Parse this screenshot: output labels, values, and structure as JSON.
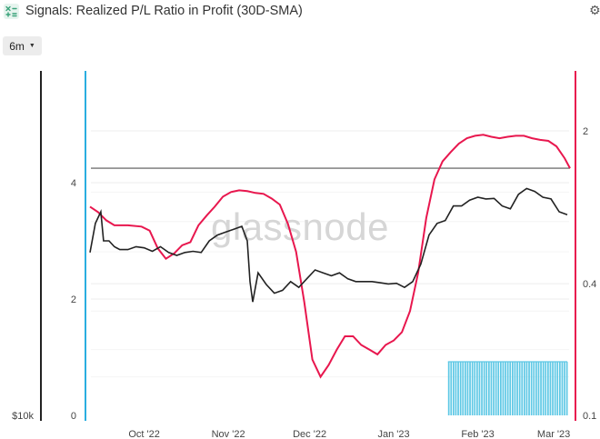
{
  "header": {
    "title": "Signals: Realized P/L Ratio in Profit (30D-SMA)"
  },
  "controls": {
    "resolution_label": "6m"
  },
  "watermark": "glassnode",
  "chart_data": {
    "type": "line",
    "x_ticks": [
      "Oct '22",
      "Nov '22",
      "Dec '22",
      "Jan '23",
      "Feb '23",
      "Mar '23"
    ],
    "left_axis": {
      "ticks": [
        "4",
        "2",
        "0"
      ],
      "bottom_label": "$10k"
    },
    "right_axis": {
      "scale": "log",
      "ticks": [
        "2",
        "0.4",
        "0.1"
      ]
    },
    "colors": {
      "price": "#222222",
      "ratio": "#e8174e",
      "signal": "#5ec8e5",
      "axis_left": "#222222",
      "axis_right": "#e8174e",
      "axis_signal": "#2aaee0"
    },
    "series": [
      {
        "key": "price",
        "values": [
          [
            "2022-09-11",
            2.8
          ],
          [
            "2022-09-13",
            3.3
          ],
          [
            "2022-09-15",
            3.5
          ],
          [
            "2022-09-16",
            3.0
          ],
          [
            "2022-09-18",
            3.0
          ],
          [
            "2022-09-20",
            2.9
          ],
          [
            "2022-09-22",
            2.85
          ],
          [
            "2022-09-25",
            2.85
          ],
          [
            "2022-09-28",
            2.9
          ],
          [
            "2022-10-01",
            2.88
          ],
          [
            "2022-10-04",
            2.82
          ],
          [
            "2022-10-07",
            2.9
          ],
          [
            "2022-10-10",
            2.8
          ],
          [
            "2022-10-13",
            2.75
          ],
          [
            "2022-10-16",
            2.8
          ],
          [
            "2022-10-19",
            2.82
          ],
          [
            "2022-10-22",
            2.8
          ],
          [
            "2022-10-25",
            3.0
          ],
          [
            "2022-10-28",
            3.1
          ],
          [
            "2022-10-31",
            3.15
          ],
          [
            "2022-11-03",
            3.2
          ],
          [
            "2022-11-06",
            3.25
          ],
          [
            "2022-11-08",
            3.0
          ],
          [
            "2022-11-09",
            2.3
          ],
          [
            "2022-11-10",
            1.95
          ],
          [
            "2022-11-12",
            2.45
          ],
          [
            "2022-11-15",
            2.25
          ],
          [
            "2022-11-18",
            2.1
          ],
          [
            "2022-11-21",
            2.15
          ],
          [
            "2022-11-24",
            2.3
          ],
          [
            "2022-11-27",
            2.2
          ],
          [
            "2022-11-30",
            2.35
          ],
          [
            "2022-12-03",
            2.5
          ],
          [
            "2022-12-06",
            2.45
          ],
          [
            "2022-12-09",
            2.4
          ],
          [
            "2022-12-12",
            2.45
          ],
          [
            "2022-12-15",
            2.35
          ],
          [
            "2022-12-18",
            2.3
          ],
          [
            "2022-12-21",
            2.3
          ],
          [
            "2022-12-24",
            2.3
          ],
          [
            "2022-12-27",
            2.28
          ],
          [
            "2022-12-30",
            2.26
          ],
          [
            "2023-01-02",
            2.27
          ],
          [
            "2023-01-05",
            2.2
          ],
          [
            "2023-01-08",
            2.3
          ],
          [
            "2023-01-11",
            2.6
          ],
          [
            "2023-01-14",
            3.1
          ],
          [
            "2023-01-17",
            3.3
          ],
          [
            "2023-01-20",
            3.35
          ],
          [
            "2023-01-23",
            3.6
          ],
          [
            "2023-01-26",
            3.6
          ],
          [
            "2023-01-29",
            3.7
          ],
          [
            "2023-02-01",
            3.75
          ],
          [
            "2023-02-04",
            3.72
          ],
          [
            "2023-02-07",
            3.73
          ],
          [
            "2023-02-10",
            3.6
          ],
          [
            "2023-02-13",
            3.55
          ],
          [
            "2023-02-16",
            3.8
          ],
          [
            "2023-02-19",
            3.9
          ],
          [
            "2023-02-22",
            3.85
          ],
          [
            "2023-02-25",
            3.75
          ],
          [
            "2023-02-28",
            3.72
          ],
          [
            "2023-03-03",
            3.5
          ],
          [
            "2023-03-06",
            3.45
          ]
        ]
      },
      {
        "key": "ratio",
        "values": [
          [
            "2022-09-11",
            0.9
          ],
          [
            "2022-09-14",
            0.85
          ],
          [
            "2022-09-17",
            0.78
          ],
          [
            "2022-09-20",
            0.74
          ],
          [
            "2022-09-25",
            0.74
          ],
          [
            "2022-09-30",
            0.73
          ],
          [
            "2022-10-03",
            0.7
          ],
          [
            "2022-10-06",
            0.58
          ],
          [
            "2022-10-09",
            0.52
          ],
          [
            "2022-10-12",
            0.55
          ],
          [
            "2022-10-15",
            0.6
          ],
          [
            "2022-10-18",
            0.62
          ],
          [
            "2022-10-21",
            0.74
          ],
          [
            "2022-10-24",
            0.82
          ],
          [
            "2022-10-27",
            0.9
          ],
          [
            "2022-10-30",
            1.0
          ],
          [
            "2022-11-02",
            1.05
          ],
          [
            "2022-11-05",
            1.07
          ],
          [
            "2022-11-08",
            1.06
          ],
          [
            "2022-11-11",
            1.04
          ],
          [
            "2022-11-14",
            1.03
          ],
          [
            "2022-11-17",
            0.98
          ],
          [
            "2022-11-20",
            0.92
          ],
          [
            "2022-11-23",
            0.75
          ],
          [
            "2022-11-26",
            0.56
          ],
          [
            "2022-11-29",
            0.33
          ],
          [
            "2022-12-02",
            0.18
          ],
          [
            "2022-12-05",
            0.15
          ],
          [
            "2022-12-08",
            0.17
          ],
          [
            "2022-12-11",
            0.2
          ],
          [
            "2022-12-14",
            0.23
          ],
          [
            "2022-12-17",
            0.23
          ],
          [
            "2022-12-20",
            0.21
          ],
          [
            "2022-12-23",
            0.2
          ],
          [
            "2022-12-26",
            0.19
          ],
          [
            "2022-12-29",
            0.21
          ],
          [
            "2023-01-01",
            0.22
          ],
          [
            "2023-01-04",
            0.24
          ],
          [
            "2023-01-07",
            0.3
          ],
          [
            "2023-01-10",
            0.45
          ],
          [
            "2023-01-13",
            0.8
          ],
          [
            "2023-01-16",
            1.2
          ],
          [
            "2023-01-19",
            1.45
          ],
          [
            "2023-01-22",
            1.6
          ],
          [
            "2023-01-25",
            1.75
          ],
          [
            "2023-01-28",
            1.85
          ],
          [
            "2023-01-31",
            1.9
          ],
          [
            "2023-02-03",
            1.92
          ],
          [
            "2023-02-06",
            1.88
          ],
          [
            "2023-02-09",
            1.85
          ],
          [
            "2023-02-12",
            1.88
          ],
          [
            "2023-02-15",
            1.9
          ],
          [
            "2023-02-18",
            1.9
          ],
          [
            "2023-02-21",
            1.85
          ],
          [
            "2023-02-24",
            1.82
          ],
          [
            "2023-02-27",
            1.8
          ],
          [
            "2023-03-02",
            1.7
          ],
          [
            "2023-03-05",
            1.5
          ],
          [
            "2023-03-07",
            1.35
          ]
        ]
      }
    ],
    "threshold": 1.35,
    "signal_range": [
      "2023-01-21",
      "2023-03-06"
    ]
  }
}
